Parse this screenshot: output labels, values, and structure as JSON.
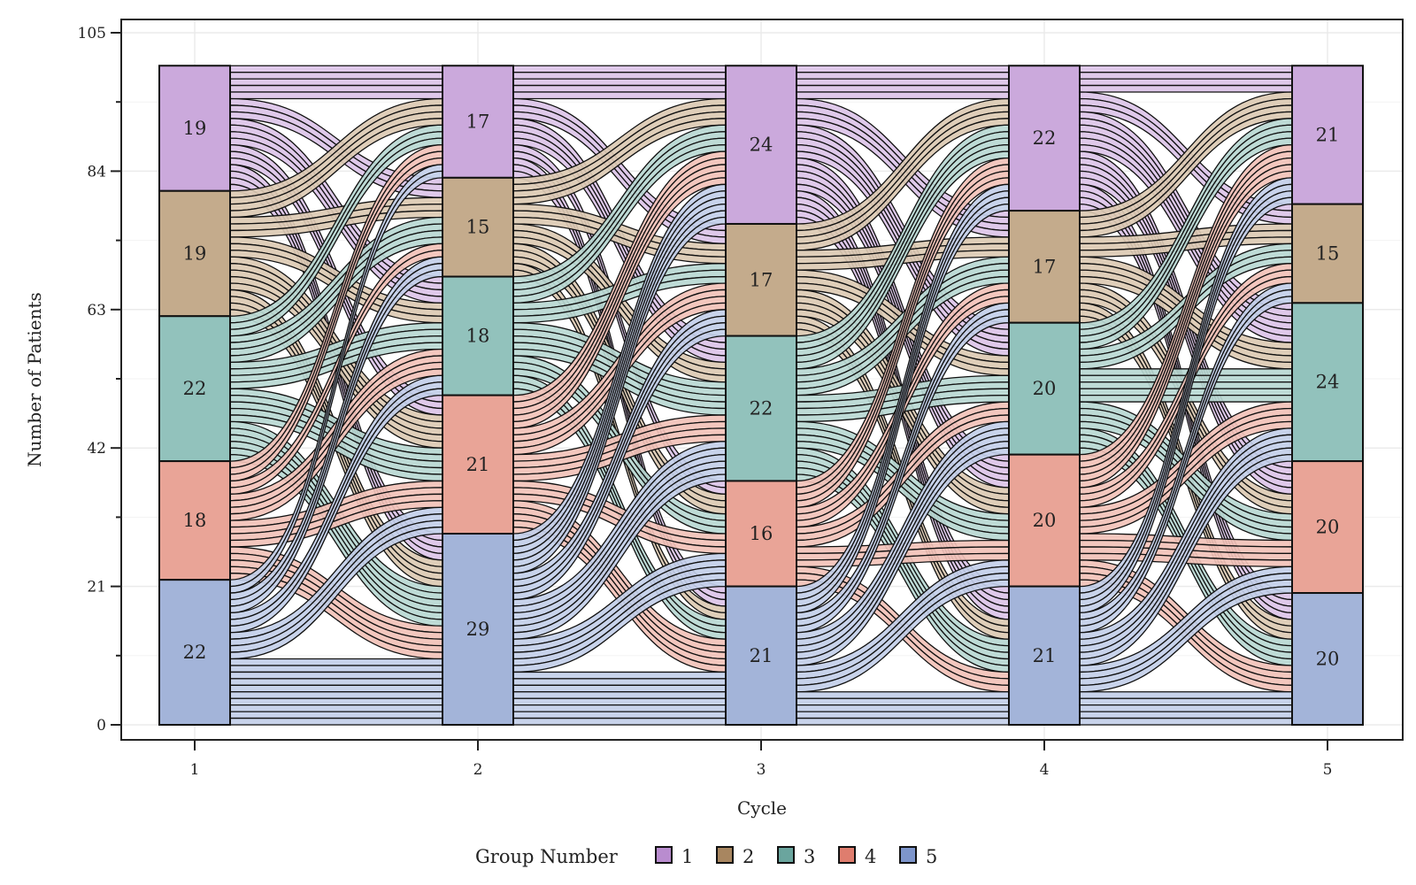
{
  "chart_data": {
    "type": "alluvial",
    "title": "",
    "xlabel": "Cycle",
    "ylabel": "Number of Patients",
    "ylim": [
      0,
      105
    ],
    "y_ticks": [
      0,
      21,
      42,
      63,
      84,
      105
    ],
    "x_categories": [
      "1",
      "2",
      "3",
      "4",
      "5"
    ],
    "grid": true,
    "legend": {
      "title": "Group Number",
      "position": "bottom",
      "entries": [
        "1",
        "2",
        "3",
        "4",
        "5"
      ]
    },
    "group_colors": [
      "#cba9dc",
      "#c4ab8c",
      "#92c2bc",
      "#e9a497",
      "#a3b4d9"
    ],
    "legend_colors": [
      "#b98ccf",
      "#a88660",
      "#6aa59e",
      "#df7d6e",
      "#7d95cb"
    ],
    "flow_colors": [
      "#dcc4e8",
      "#dccab3",
      "#b8d8d3",
      "#f2c2b9",
      "#c3cfe9"
    ],
    "stacks": [
      {
        "cycle": "1",
        "groups": [
          "1",
          "2",
          "3",
          "4",
          "5"
        ],
        "values": [
          19,
          19,
          22,
          18,
          22
        ]
      },
      {
        "cycle": "2",
        "groups": [
          "1",
          "2",
          "3",
          "4",
          "5"
        ],
        "values": [
          17,
          15,
          18,
          21,
          29
        ]
      },
      {
        "cycle": "3",
        "groups": [
          "1",
          "2",
          "3",
          "4",
          "5"
        ],
        "values": [
          24,
          17,
          22,
          16,
          21
        ]
      },
      {
        "cycle": "4",
        "groups": [
          "1",
          "2",
          "3",
          "4",
          "5"
        ],
        "values": [
          22,
          17,
          20,
          20,
          21
        ]
      },
      {
        "cycle": "5",
        "groups": [
          "1",
          "2",
          "3",
          "4",
          "5"
        ],
        "values": [
          21,
          15,
          24,
          20,
          20
        ]
      }
    ],
    "transitions": [
      {
        "from": "1",
        "to": "2",
        "matrix": [
          [
            5,
            3,
            4,
            3,
            4
          ],
          [
            4,
            3,
            3,
            5,
            4
          ],
          [
            3,
            4,
            4,
            5,
            6
          ],
          [
            3,
            2,
            4,
            4,
            5
          ],
          [
            2,
            3,
            3,
            4,
            10
          ]
        ]
      },
      {
        "from": "2",
        "to": "3",
        "matrix": [
          [
            5,
            3,
            4,
            2,
            3
          ],
          [
            4,
            3,
            3,
            3,
            2
          ],
          [
            4,
            3,
            5,
            3,
            3
          ],
          [
            5,
            4,
            4,
            3,
            5
          ],
          [
            6,
            4,
            6,
            5,
            8
          ]
        ]
      },
      {
        "from": "3",
        "to": "4",
        "matrix": [
          [
            5,
            4,
            5,
            5,
            5
          ],
          [
            4,
            3,
            3,
            4,
            3
          ],
          [
            5,
            4,
            4,
            4,
            5
          ],
          [
            4,
            3,
            3,
            3,
            3
          ],
          [
            4,
            3,
            5,
            4,
            5
          ]
        ]
      },
      {
        "from": "4",
        "to": "5",
        "matrix": [
          [
            4,
            3,
            6,
            5,
            4
          ],
          [
            4,
            3,
            4,
            3,
            3
          ],
          [
            4,
            3,
            5,
            4,
            4
          ],
          [
            5,
            3,
            4,
            4,
            4
          ],
          [
            4,
            3,
            5,
            4,
            5
          ]
        ]
      }
    ]
  }
}
